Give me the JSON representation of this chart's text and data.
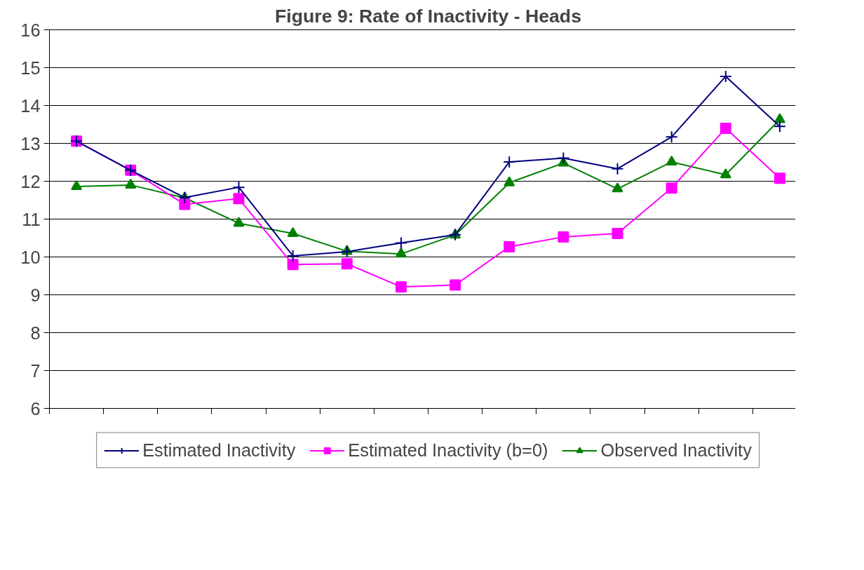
{
  "chart_data": {
    "type": "line",
    "title": "Figure 9: Rate of Inactivity - Heads",
    "categories": [
      null,
      null,
      null,
      null,
      null,
      null,
      null,
      null,
      null,
      null,
      null,
      null,
      null,
      null
    ],
    "series": [
      {
        "name": "Estimated Inactivity",
        "color": "#000080",
        "marker": "cross",
        "values": [
          13.06,
          12.29,
          11.57,
          11.84,
          10.03,
          10.14,
          10.37,
          10.59,
          12.51,
          12.61,
          12.33,
          13.17,
          14.77,
          13.45
        ]
      },
      {
        "name": "Estimated Inactivity (b=0)",
        "color": "#ff00ff",
        "marker": "square",
        "values": [
          13.06,
          12.29,
          11.39,
          11.54,
          9.8,
          9.82,
          9.21,
          9.26,
          10.27,
          10.53,
          10.62,
          11.82,
          13.4,
          12.08
        ]
      },
      {
        "name": "Observed Inactivity",
        "color": "#008000",
        "marker": "triangle",
        "values": [
          11.86,
          11.9,
          11.56,
          10.89,
          10.62,
          10.15,
          10.08,
          10.58,
          11.96,
          12.48,
          11.8,
          12.51,
          12.17,
          13.63
        ]
      }
    ],
    "ylim": [
      6,
      16
    ],
    "yticks": [
      6,
      7,
      8,
      9,
      10,
      11,
      12,
      13,
      14,
      15,
      16
    ],
    "grid": "y",
    "legend": "bottom",
    "line_style": "solid"
  }
}
